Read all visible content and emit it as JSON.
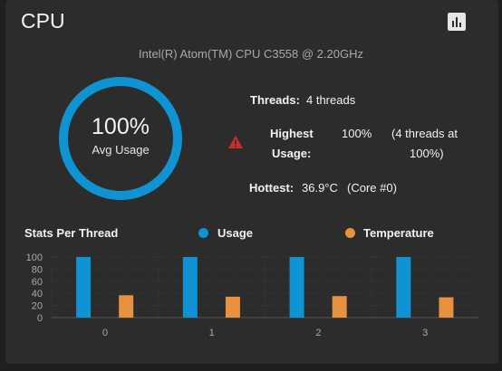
{
  "card": {
    "title": "CPU",
    "menu_icon": "bar-chart-icon",
    "cpu_model": "Intel(R) Atom(TM) CPU C3558 @ 2.20GHz"
  },
  "gauge": {
    "value": "100%",
    "label": "Avg Usage",
    "fraction": 1.0,
    "color": "#0f93d2"
  },
  "info": {
    "threads_label": "Threads:",
    "threads_value": "4 threads",
    "highest_label_line1": "Highest",
    "highest_label_line2": "Usage:",
    "highest_value": "100%",
    "highest_detail_line1": "(4 threads at",
    "highest_detail_line2": "100%)",
    "hottest_label": "Hottest:",
    "hottest_value": "36.9°C",
    "hottest_detail": "(Core #0)",
    "warning_icon": "warning-triangle-icon",
    "warning_color": "#d12c2c"
  },
  "stats": {
    "title": "Stats Per Thread",
    "legend": [
      {
        "label": "Usage",
        "color": "#0f93d2"
      },
      {
        "label": "Temperature",
        "color": "#e8913e"
      }
    ]
  },
  "chart_data": {
    "type": "bar",
    "categories": [
      "0",
      "1",
      "2",
      "3"
    ],
    "series": [
      {
        "name": "Usage",
        "values": [
          100,
          100,
          100,
          100
        ],
        "color": "#0f93d2"
      },
      {
        "name": "Temperature",
        "values": [
          36.9,
          34.5,
          35.5,
          33.5
        ],
        "color": "#e8913e"
      }
    ],
    "ylim": [
      0,
      100
    ],
    "yticks": [
      "0",
      "20",
      "40",
      "60",
      "80",
      "100"
    ],
    "grid": true
  }
}
